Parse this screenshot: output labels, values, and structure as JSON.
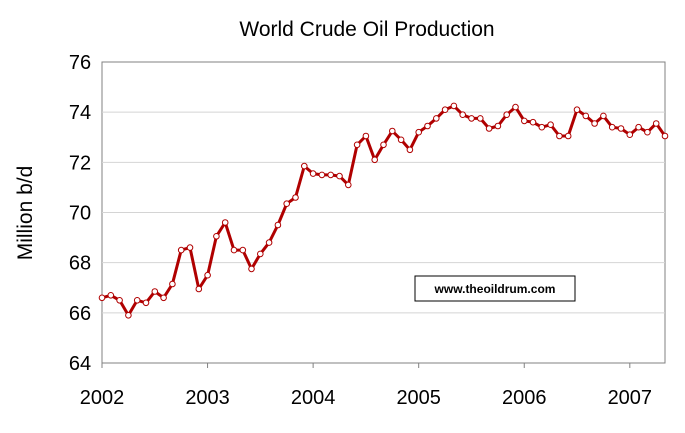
{
  "chart_data": {
    "type": "line",
    "title": "World Crude Oil Production",
    "xlabel": "",
    "ylabel": "Million b/d",
    "ylim": [
      64,
      76
    ],
    "yticks": [
      "64",
      "66",
      "68",
      "70",
      "72",
      "74",
      "76"
    ],
    "xticks": [
      "2002",
      "2003",
      "2004",
      "2005",
      "2006",
      "2007"
    ],
    "xlim": [
      "2002-01",
      "2007-05"
    ],
    "grid": true,
    "legend": "none",
    "annotation": "www.theoildrum.com",
    "colors": {
      "line": "#b00000",
      "marker_fill": "#ffffff",
      "grid": "#d4d4d4",
      "axis": "#808080"
    },
    "series": [
      {
        "x": [
          "2002-01",
          "2002-02",
          "2002-03",
          "2002-04",
          "2002-05",
          "2002-06",
          "2002-07",
          "2002-08",
          "2002-09",
          "2002-10",
          "2002-11",
          "2002-12",
          "2003-01",
          "2003-02",
          "2003-03",
          "2003-04",
          "2003-05",
          "2003-06",
          "2003-07",
          "2003-08",
          "2003-09",
          "2003-10",
          "2003-11",
          "2003-12",
          "2004-01",
          "2004-02",
          "2004-03",
          "2004-04",
          "2004-05",
          "2004-06",
          "2004-07",
          "2004-08",
          "2004-09",
          "2004-10",
          "2004-11",
          "2004-12",
          "2005-01",
          "2005-02",
          "2005-03",
          "2005-04",
          "2005-05",
          "2005-06",
          "2005-07",
          "2005-08",
          "2005-09",
          "2005-10",
          "2005-11",
          "2005-12",
          "2006-01",
          "2006-02",
          "2006-03",
          "2006-04",
          "2006-05",
          "2006-06",
          "2006-07",
          "2006-08",
          "2006-09",
          "2006-10",
          "2006-11",
          "2006-12",
          "2007-01",
          "2007-02",
          "2007-03",
          "2007-04",
          "2007-05"
        ],
        "values": [
          66.6,
          66.7,
          66.5,
          65.9,
          66.5,
          66.4,
          66.85,
          66.6,
          67.15,
          68.5,
          68.6,
          66.95,
          67.5,
          69.05,
          69.6,
          68.5,
          68.5,
          67.75,
          68.35,
          68.8,
          69.5,
          70.35,
          70.6,
          71.85,
          71.55,
          71.5,
          71.5,
          71.45,
          71.1,
          72.7,
          73.05,
          72.1,
          72.7,
          73.25,
          72.9,
          72.5,
          73.2,
          73.45,
          73.75,
          74.1,
          74.25,
          73.9,
          73.75,
          73.75,
          73.35,
          73.45,
          73.9,
          74.2,
          73.65,
          73.6,
          73.4,
          73.5,
          73.05,
          73.05,
          74.1,
          73.85,
          73.55,
          73.85,
          73.4,
          73.35,
          73.1,
          73.4,
          73.2,
          73.55,
          73.05
        ]
      }
    ]
  }
}
